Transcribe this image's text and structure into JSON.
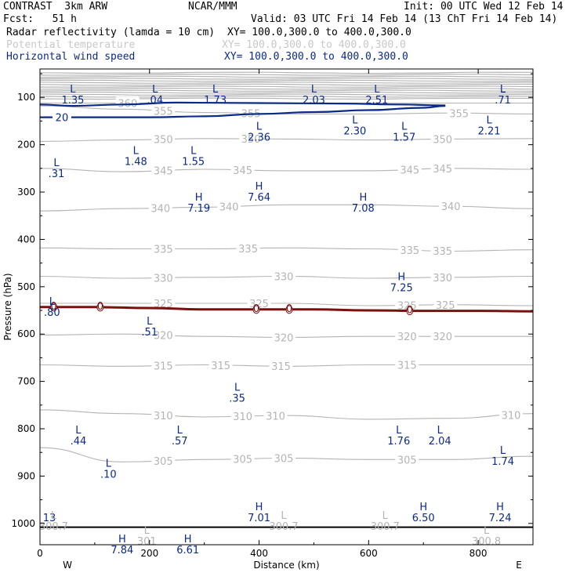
{
  "header": {
    "model": "CONTRAST  3km ARW",
    "center": "NCAR/MMM",
    "init": "Init: 00 UTC Wed 12 Feb 14",
    "fcst": "Fcst:   51 h",
    "valid": "Valid: 03 UTC Fri 14 Feb 14 (13 ChT Fri 14 Feb 14)",
    "field1": "Radar reflectivity (lamda = 10 cm)",
    "field1_xy": "XY= 100.0,300.0 to 400.0,300.0",
    "field2": "Potential temperature",
    "field2_xy": "XY= 100.0,300.0 to 400.0,300.0",
    "field3": "Horizontal wind speed",
    "field3_xy": "XY= 100.0,300.0 to 400.0,300.0"
  },
  "colors": {
    "theta": "#b4b4b4",
    "wind": "#0b2a88",
    "reflectivity": "#7a1010",
    "axis": "#000000"
  },
  "chart_data": {
    "type": "cross-section",
    "title": "CONTRAST 3km ARW cross section",
    "xlabel": "Distance (km)",
    "ylabel": "Pressure (hPa)",
    "xlim": [
      0,
      900
    ],
    "ylim": [
      1045,
      40
    ],
    "xticks": [
      0,
      200,
      400,
      600,
      800
    ],
    "yticks": [
      100,
      200,
      300,
      400,
      500,
      600,
      700,
      800,
      900,
      1000
    ],
    "endpoints": {
      "left": "W",
      "right": "E"
    },
    "theta_levels": [
      {
        "value": 360,
        "p": [
          112,
          112,
          112,
          112,
          112,
          112,
          112
        ],
        "labels": [
          {
            "x": 160,
            "text": "360"
          }
        ]
      },
      {
        "value": 355,
        "p": [
          118,
          125,
          132,
          135,
          135,
          133,
          135
        ],
        "labels": [
          {
            "x": 225,
            "text": "355"
          },
          {
            "x": 385,
            "text": "355"
          },
          {
            "x": 765,
            "text": "355"
          }
        ]
      },
      {
        "value": 350,
        "p": [
          193,
          190,
          187,
          188,
          190,
          188,
          187
        ],
        "labels": [
          {
            "x": 225,
            "text": "350"
          },
          {
            "x": 385,
            "text": "350"
          },
          {
            "x": 735,
            "text": "350"
          }
        ]
      },
      {
        "value": 345,
        "p": [
          250,
          257,
          252,
          255,
          255,
          250,
          252
        ],
        "labels": [
          {
            "x": 225,
            "text": "345"
          },
          {
            "x": 370,
            "text": "345"
          },
          {
            "x": 675,
            "text": "345"
          },
          {
            "x": 735,
            "text": "345"
          }
        ]
      },
      {
        "value": 340,
        "p": [
          340,
          335,
          332,
          327,
          327,
          330,
          335
        ],
        "labels": [
          {
            "x": 220,
            "text": "340"
          },
          {
            "x": 345,
            "text": "340"
          },
          {
            "x": 750,
            "text": "340"
          }
        ]
      },
      {
        "value": 335,
        "p": [
          418,
          420,
          420,
          418,
          420,
          425,
          422
        ],
        "labels": [
          {
            "x": 225,
            "text": "335"
          },
          {
            "x": 380,
            "text": "335"
          },
          {
            "x": 675,
            "text": "335"
          },
          {
            "x": 735,
            "text": "335"
          }
        ]
      },
      {
        "value": 330,
        "p": [
          478,
          482,
          480,
          478,
          482,
          480,
          478
        ],
        "labels": [
          {
            "x": 225,
            "text": "330"
          },
          {
            "x": 445,
            "text": "330"
          },
          {
            "x": 735,
            "text": "330"
          }
        ]
      },
      {
        "value": 325,
        "p": [
          535,
          535,
          535,
          535,
          540,
          538,
          540
        ],
        "labels": [
          {
            "x": 225,
            "text": "325"
          },
          {
            "x": 400,
            "text": "325"
          },
          {
            "x": 670,
            "text": "325"
          },
          {
            "x": 740,
            "text": "325"
          }
        ]
      },
      {
        "value": 320,
        "p": [
          602,
          600,
          605,
          607,
          605,
          605,
          605
        ],
        "labels": [
          {
            "x": 225,
            "text": "320"
          },
          {
            "x": 445,
            "text": "320"
          },
          {
            "x": 670,
            "text": "320"
          },
          {
            "x": 735,
            "text": "320"
          }
        ]
      },
      {
        "value": 315,
        "p": [
          665,
          668,
          665,
          668,
          665,
          665,
          665
        ],
        "labels": [
          {
            "x": 225,
            "text": "315"
          },
          {
            "x": 330,
            "text": "315"
          },
          {
            "x": 440,
            "text": "315"
          },
          {
            "x": 670,
            "text": "315"
          }
        ]
      },
      {
        "value": 310,
        "p": [
          760,
          768,
          775,
          772,
          780,
          778,
          768
        ],
        "labels": [
          {
            "x": 225,
            "text": "310"
          },
          {
            "x": 370,
            "text": "310"
          },
          {
            "x": 430,
            "text": "310"
          },
          {
            "x": 860,
            "text": "310"
          }
        ]
      },
      {
        "value": 305,
        "p": [
          840,
          870,
          865,
          862,
          865,
          865,
          858
        ],
        "labels": [
          {
            "x": 225,
            "text": "305"
          },
          {
            "x": 370,
            "text": "305"
          },
          {
            "x": 445,
            "text": "305"
          },
          {
            "x": 670,
            "text": "305"
          }
        ]
      }
    ],
    "wind_contours": [
      {
        "value": 20,
        "x": [
          0,
          200,
          300,
          400,
          500,
          600,
          700,
          740
        ],
        "p": [
          142,
          142,
          140,
          135,
          131,
          127,
          122,
          118
        ],
        "label": {
          "x": 40,
          "text": "20"
        }
      },
      {
        "value": 25,
        "x": [
          0,
          60,
          150,
          250,
          400,
          550,
          650,
          740
        ],
        "p": [
          115,
          118,
          115,
          111,
          112,
          113,
          115,
          117
        ]
      }
    ],
    "reflectivity_contour": {
      "value": 0,
      "x": [
        0,
        100,
        200,
        300,
        400,
        500,
        600,
        700,
        800,
        900
      ],
      "p": [
        543,
        543,
        545,
        548,
        548,
        548,
        550,
        551,
        551,
        552
      ],
      "labels": [
        {
          "x": 25,
          "text": "0"
        },
        {
          "x": 110,
          "text": "0"
        },
        {
          "x": 395,
          "text": "0"
        },
        {
          "x": 455,
          "text": "0"
        },
        {
          "x": 675,
          "text": "0"
        }
      ]
    },
    "surface_line": {
      "p": 1008
    },
    "wind_extrema": [
      {
        "type": "L",
        "value": "1.35",
        "x": 60,
        "p": 90
      },
      {
        "type": "L",
        "value": ".04",
        "x": 210,
        "p": 90
      },
      {
        "type": "L",
        "value": "1.73",
        "x": 320,
        "p": 90
      },
      {
        "type": "L",
        "value": "2.03",
        "x": 500,
        "p": 90
      },
      {
        "type": "L",
        "value": "2.51",
        "x": 615,
        "p": 90
      },
      {
        "type": "L",
        "value": ".71",
        "x": 845,
        "p": 90
      },
      {
        "type": "L",
        "value": "2.36",
        "x": 400,
        "p": 168
      },
      {
        "type": "L",
        "value": "2.30",
        "x": 575,
        "p": 155
      },
      {
        "type": "L",
        "value": "1.57",
        "x": 665,
        "p": 168
      },
      {
        "type": "L",
        "value": "2.21",
        "x": 820,
        "p": 155
      },
      {
        "type": "L",
        "value": "1.48",
        "x": 175,
        "p": 220
      },
      {
        "type": "L",
        "value": "1.55",
        "x": 280,
        "p": 220
      },
      {
        "type": "L",
        "value": ".31",
        "x": 30,
        "p": 245
      },
      {
        "type": "H",
        "value": "7.64",
        "x": 400,
        "p": 295
      },
      {
        "type": "H",
        "value": "7.19",
        "x": 290,
        "p": 318
      },
      {
        "type": "H",
        "value": "7.08",
        "x": 590,
        "p": 318
      },
      {
        "type": "H",
        "value": "7.25",
        "x": 660,
        "p": 486
      },
      {
        "type": "L",
        "value": ".80",
        "x": 22,
        "p": 538
      },
      {
        "type": "L",
        "value": ".51",
        "x": 200,
        "p": 580
      },
      {
        "type": "L",
        "value": ".35",
        "x": 360,
        "p": 720
      },
      {
        "type": "L",
        "value": ".44",
        "x": 70,
        "p": 810
      },
      {
        "type": "L",
        "value": ".57",
        "x": 255,
        "p": 810
      },
      {
        "type": "L",
        "value": "1.76",
        "x": 655,
        "p": 810
      },
      {
        "type": "L",
        "value": "2.04",
        "x": 730,
        "p": 810
      },
      {
        "type": "L",
        "value": "1.74",
        "x": 845,
        "p": 853
      },
      {
        "type": "L",
        "value": ".10",
        "x": 125,
        "p": 880
      },
      {
        "type": "H",
        "value": "7.01",
        "x": 400,
        "p": 972
      },
      {
        "type": "H",
        "value": "6.50",
        "x": 700,
        "p": 972
      },
      {
        "type": "H",
        "value": "7.24",
        "x": 840,
        "p": 972
      },
      {
        "type": "H",
        "value": "7.84",
        "x": 150,
        "p": 1040
      },
      {
        "type": "H",
        "value": "6.61",
        "x": 270,
        "p": 1040
      },
      {
        "type": "",
        "value": "13",
        "x": 5,
        "p": 972
      }
    ],
    "theta_extrema": [
      {
        "type": "L",
        "value": "300.7",
        "x": 25,
        "p": 1010
      },
      {
        "type": "L",
        "value": "301",
        "x": 195,
        "p": 1042
      },
      {
        "type": "L",
        "value": "300.7",
        "x": 445,
        "p": 1010
      },
      {
        "type": "L",
        "value": "300.7",
        "x": 630,
        "p": 1010
      },
      {
        "type": "L",
        "value": "300.8",
        "x": 815,
        "p": 1042
      }
    ]
  }
}
